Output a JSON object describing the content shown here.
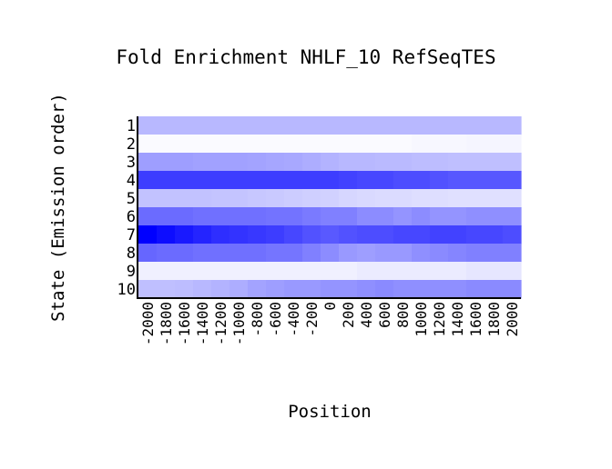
{
  "chart_data": {
    "type": "heatmap",
    "title": "Fold Enrichment NHLF_10 RefSeqTES",
    "xlabel": "Position",
    "ylabel": "State (Emission order)",
    "x_tick_labels": [
      "-2000",
      "-1800",
      "-1600",
      "-1400",
      "-1200",
      "-1000",
      "-800",
      "-600",
      "-400",
      "-200",
      "0",
      "200",
      "400",
      "600",
      "800",
      "1000",
      "1200",
      "1400",
      "1600",
      "1800",
      "2000"
    ],
    "y_tick_labels": [
      "1",
      "2",
      "3",
      "4",
      "5",
      "6",
      "7",
      "8",
      "9",
      "10"
    ],
    "color_low": "#ffffff",
    "color_high": "#0000ff",
    "value_range": [
      0,
      1
    ],
    "grid": false,
    "values": [
      [
        0.28,
        0.28,
        0.28,
        0.28,
        0.28,
        0.28,
        0.28,
        0.28,
        0.28,
        0.28,
        0.28,
        0.28,
        0.28,
        0.28,
        0.28,
        0.28,
        0.28,
        0.28,
        0.28,
        0.28,
        0.28
      ],
      [
        0.02,
        0.02,
        0.02,
        0.02,
        0.02,
        0.02,
        0.02,
        0.02,
        0.02,
        0.02,
        0.02,
        0.02,
        0.02,
        0.02,
        0.02,
        0.03,
        0.03,
        0.03,
        0.04,
        0.04,
        0.04
      ],
      [
        0.38,
        0.38,
        0.38,
        0.37,
        0.37,
        0.37,
        0.36,
        0.35,
        0.34,
        0.32,
        0.3,
        0.28,
        0.28,
        0.27,
        0.27,
        0.26,
        0.26,
        0.25,
        0.25,
        0.25,
        0.25
      ],
      [
        0.76,
        0.76,
        0.76,
        0.76,
        0.76,
        0.76,
        0.76,
        0.76,
        0.76,
        0.76,
        0.76,
        0.74,
        0.72,
        0.72,
        0.7,
        0.7,
        0.68,
        0.66,
        0.66,
        0.66,
        0.66
      ],
      [
        0.24,
        0.24,
        0.24,
        0.24,
        0.23,
        0.23,
        0.22,
        0.21,
        0.2,
        0.19,
        0.18,
        0.16,
        0.15,
        0.14,
        0.14,
        0.13,
        0.13,
        0.12,
        0.12,
        0.12,
        0.12
      ],
      [
        0.58,
        0.58,
        0.58,
        0.56,
        0.56,
        0.56,
        0.56,
        0.55,
        0.55,
        0.52,
        0.5,
        0.5,
        0.45,
        0.45,
        0.42,
        0.45,
        0.42,
        0.42,
        0.44,
        0.44,
        0.44
      ],
      [
        1.0,
        0.95,
        0.9,
        0.86,
        0.82,
        0.8,
        0.78,
        0.76,
        0.72,
        0.68,
        0.65,
        0.68,
        0.7,
        0.7,
        0.72,
        0.72,
        0.74,
        0.74,
        0.72,
        0.72,
        0.7
      ],
      [
        0.6,
        0.58,
        0.58,
        0.56,
        0.56,
        0.56,
        0.56,
        0.54,
        0.54,
        0.5,
        0.45,
        0.4,
        0.38,
        0.4,
        0.4,
        0.44,
        0.46,
        0.48,
        0.5,
        0.5,
        0.5
      ],
      [
        0.06,
        0.06,
        0.06,
        0.06,
        0.06,
        0.06,
        0.06,
        0.06,
        0.06,
        0.06,
        0.06,
        0.06,
        0.08,
        0.08,
        0.08,
        0.08,
        0.08,
        0.08,
        0.1,
        0.1,
        0.1
      ],
      [
        0.25,
        0.25,
        0.26,
        0.28,
        0.3,
        0.32,
        0.36,
        0.38,
        0.4,
        0.4,
        0.42,
        0.42,
        0.44,
        0.46,
        0.44,
        0.44,
        0.44,
        0.44,
        0.46,
        0.46,
        0.46
      ]
    ]
  }
}
